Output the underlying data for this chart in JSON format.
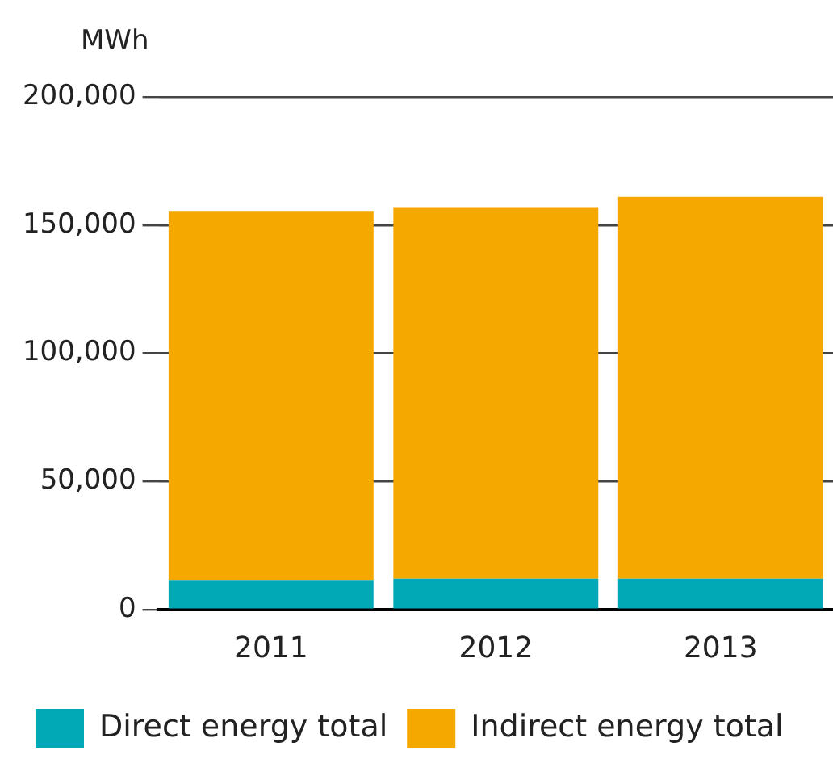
{
  "chart_data": {
    "type": "bar",
    "ylabel": "MWh",
    "categories": [
      "2011",
      "2012",
      "2013"
    ],
    "series": [
      {
        "name": "Direct energy total",
        "color": "#00a9b5",
        "values": [
          11500,
          12000,
          12000
        ]
      },
      {
        "name": "Indirect energy total",
        "color": "#f5a800",
        "values": [
          144000,
          145000,
          149000
        ]
      }
    ],
    "stacked": true,
    "ylim": [
      0,
      200000
    ],
    "yticks": [
      0,
      {
        "value": 50000,
        "label": "50,000"
      },
      {
        "value": 100000,
        "label": "100,000"
      },
      {
        "value": 150000,
        "label": "150,000"
      },
      {
        "value": 200000,
        "label": "200,000"
      }
    ],
    "grid": "y",
    "legend": "bottom"
  }
}
